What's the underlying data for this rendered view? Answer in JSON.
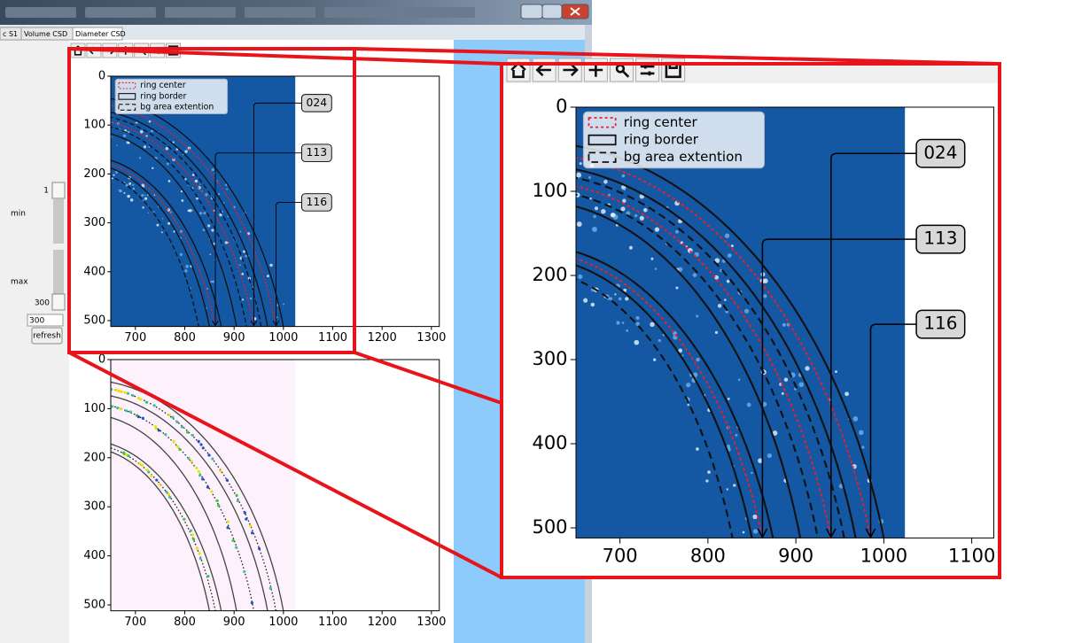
{
  "window": {
    "tabs": [
      "c S1",
      "Volume CSD",
      "Diameter CSD"
    ]
  },
  "sidebar": {
    "min_slider_value": 1,
    "min_label": "min",
    "max_slider_value": 300,
    "max_label": "max",
    "max_input": 300,
    "refresh_button": "refresh"
  },
  "plot": {
    "xlim": [
      650,
      1316
    ],
    "ylim": [
      0,
      512
    ],
    "xticks": [
      700,
      800,
      900,
      1000,
      1100,
      1200,
      1300
    ],
    "yticks": [
      0,
      100,
      200,
      300,
      400,
      500
    ],
    "legend": [
      "ring center",
      "ring border",
      "bg area extention"
    ],
    "annotations": [
      {
        "label": "024",
        "x": 940
      },
      {
        "label": "113",
        "x": 862
      },
      {
        "label": "116",
        "x": 985
      }
    ]
  },
  "zoom": {
    "xlim": [
      650,
      1125
    ]
  }
}
